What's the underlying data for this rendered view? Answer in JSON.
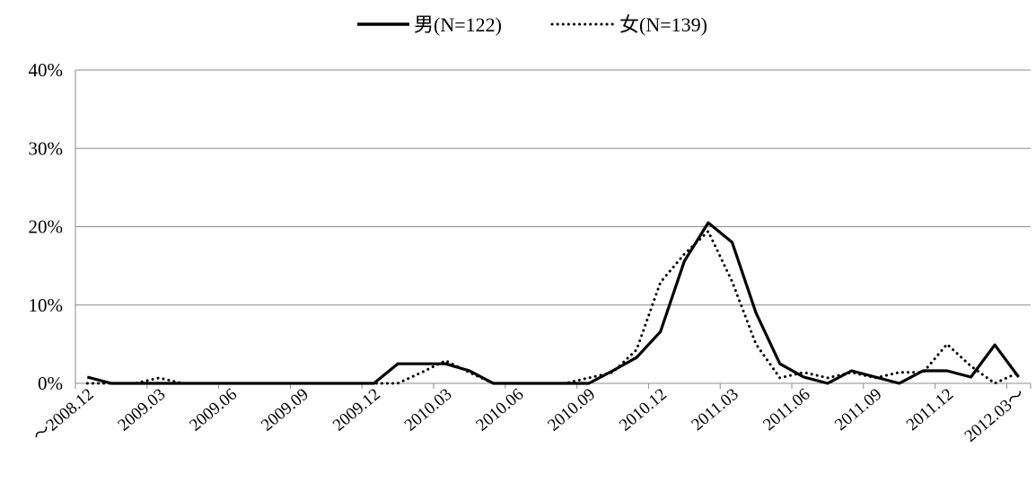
{
  "chart_data": {
    "type": "line",
    "grid": true,
    "legend_placement": "top-center",
    "ylim": [
      0,
      40
    ],
    "y_ticks": [
      0,
      10,
      20,
      30,
      40
    ],
    "y_tick_labels": [
      "0%",
      "10%",
      "20%",
      "30%",
      "40%"
    ],
    "x_tick_labels": [
      "～2008.12",
      "2009.03",
      "2009.06",
      "2009.09",
      "2009.12",
      "2010.03",
      "2010.06",
      "2010.09",
      "2010.12",
      "2011.03",
      "2011.06",
      "2011.09",
      "2011.12",
      "2012.03～"
    ],
    "categories": [
      "～2008.12",
      "2009.01",
      "2009.02",
      "2009.03",
      "2009.04",
      "2009.05",
      "2009.06",
      "2009.07",
      "2009.08",
      "2009.09",
      "2009.10",
      "2009.11",
      "2009.12",
      "2010.01",
      "2010.02",
      "2010.03",
      "2010.04",
      "2010.05",
      "2010.06",
      "2010.07",
      "2010.08",
      "2010.09",
      "2010.10",
      "2010.11",
      "2010.12",
      "2011.01",
      "2011.02",
      "2011.03",
      "2011.04",
      "2011.05",
      "2011.06",
      "2011.07",
      "2011.08",
      "2011.09",
      "2011.10",
      "2011.11",
      "2011.12",
      "2012.01",
      "2012.02",
      "2012.03～"
    ],
    "series": [
      {
        "name": "男(N=122)",
        "line_style": "solid",
        "color": "#000000",
        "values": [
          0.8,
          0,
          0,
          0,
          0,
          0,
          0,
          0,
          0,
          0,
          0,
          0,
          0,
          2.5,
          2.5,
          2.5,
          1.6,
          0,
          0,
          0,
          0,
          0,
          1.6,
          3.3,
          6.6,
          15.6,
          20.5,
          18.0,
          9.0,
          2.5,
          0.8,
          0,
          1.6,
          0.8,
          0,
          1.6,
          1.6,
          0.8,
          4.9,
          0.8
        ]
      },
      {
        "name": "女(N=139)",
        "line_style": "dotted",
        "color": "#000000",
        "values": [
          0,
          0,
          0,
          0.7,
          0,
          0,
          0,
          0,
          0,
          0,
          0,
          0,
          0,
          0,
          1.4,
          2.9,
          1.4,
          0,
          0,
          0,
          0,
          0.7,
          1.4,
          4.3,
          12.9,
          16.5,
          19.4,
          13.0,
          5.0,
          0.7,
          1.4,
          0.7,
          1.4,
          0.7,
          1.4,
          1.4,
          5.0,
          2.2,
          0,
          1.4
        ]
      }
    ]
  }
}
